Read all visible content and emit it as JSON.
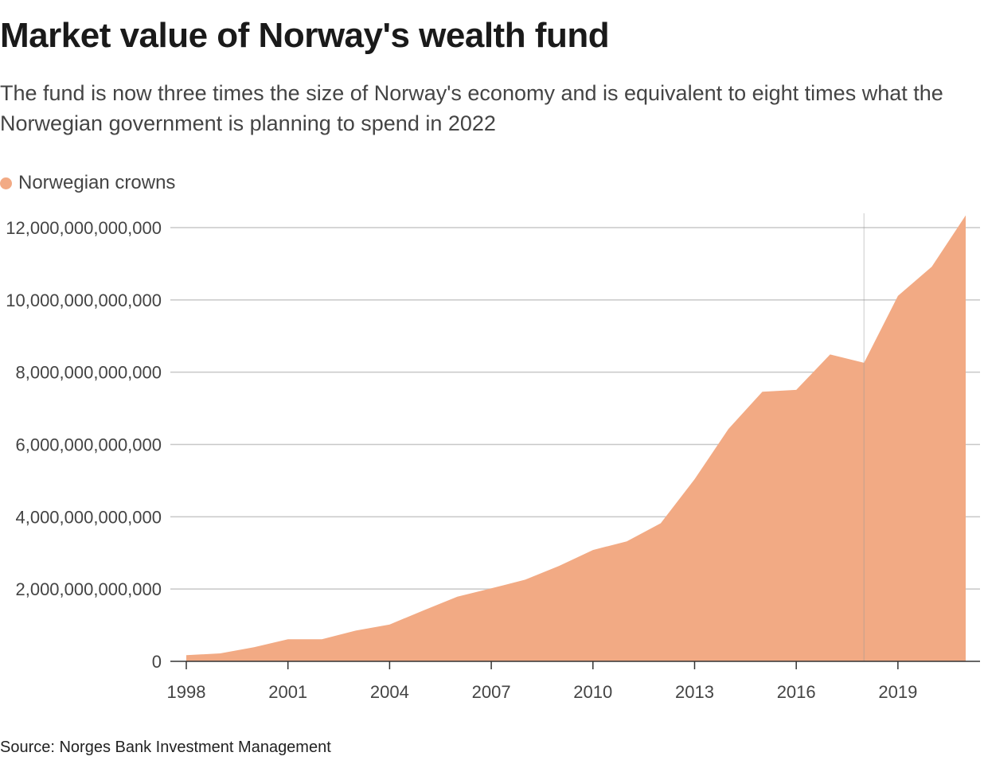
{
  "header": {
    "title": "Market value of Norway's wealth fund",
    "subtitle": "The fund is now three times the size of Norway's economy and is equivalent to eight times what the Norwegian government is planning to spend in 2022"
  },
  "legend": {
    "label": "Norwegian crowns",
    "color": "#f2aa84"
  },
  "source": "Source: Norges Bank Investment Management",
  "chart_data": {
    "type": "area",
    "title": "Market value of Norway's wealth fund",
    "xlabel": "",
    "ylabel": "",
    "x": [
      1998,
      1999,
      2000,
      2001,
      2002,
      2003,
      2004,
      2005,
      2006,
      2007,
      2008,
      2009,
      2010,
      2011,
      2012,
      2013,
      2014,
      2015,
      2016,
      2017,
      2018,
      2019,
      2020,
      2021
    ],
    "series": [
      {
        "name": "Norwegian crowns",
        "color": "#f2aa84",
        "values": [
          170000000000,
          220000000000,
          390000000000,
          610000000000,
          610000000000,
          850000000000,
          1020000000000,
          1410000000000,
          1790000000000,
          2020000000000,
          2260000000000,
          2640000000000,
          3080000000000,
          3320000000000,
          3820000000000,
          5040000000000,
          6430000000000,
          7460000000000,
          7510000000000,
          8490000000000,
          8260000000000,
          10110000000000,
          10920000000000,
          12340000000000
        ]
      }
    ],
    "xlim": [
      1998,
      2021
    ],
    "ylim": [
      0,
      12000000000000
    ],
    "x_ticks": [
      1998,
      2001,
      2004,
      2007,
      2010,
      2013,
      2016,
      2019
    ],
    "x_tick_labels": [
      "1998",
      "2001",
      "2004",
      "2007",
      "2010",
      "2013",
      "2016",
      "2019"
    ],
    "y_ticks": [
      0,
      2000000000000,
      4000000000000,
      6000000000000,
      8000000000000,
      10000000000000,
      12000000000000
    ],
    "y_tick_labels": [
      "0",
      "2,000,000,000,000",
      "4,000,000,000,000",
      "6,000,000,000,000",
      "8,000,000,000,000",
      "10,000,000,000,000",
      "12,000,000,000,000"
    ],
    "grid": true,
    "highlight_x": 2018,
    "legend_position": "top-left"
  }
}
